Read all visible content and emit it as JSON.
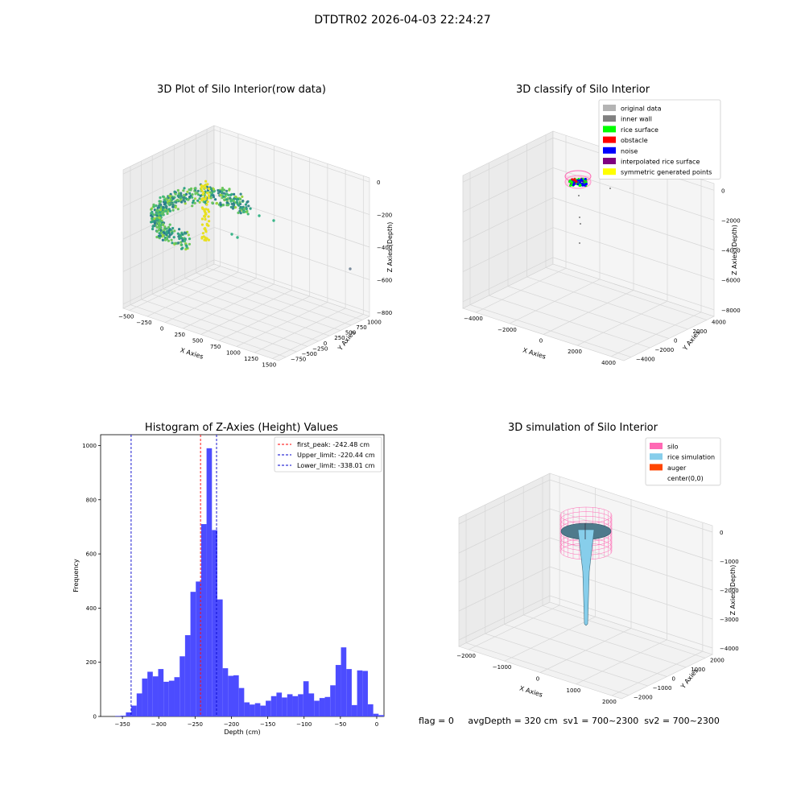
{
  "figure": {
    "suptitle": "DTDTR02 2026-04-03 22:24:27",
    "footer": "flag = 0     avgDepth = 320 cm  sv1 = 700~2300  sv2 = 700~2300"
  },
  "colors": {
    "hist_bar": "#4c4cff",
    "first_peak": "#ff0000",
    "limit": "#0000cc",
    "silo": "#ff69b4",
    "rice_sim": "#87ceeb",
    "auger": "#ff4500"
  },
  "chart_data": [
    {
      "type": "scatter",
      "subtype": "scatter3d",
      "title": "3D Plot of Silo Interior(row data)",
      "xlabel": "X Axies",
      "ylabel": "Y Axies",
      "zlabel": "Z Axies (Depth)",
      "x_ticks": [
        "−500",
        "−250",
        "0",
        "250",
        "500",
        "750",
        "1000",
        "1250",
        "1500"
      ],
      "y_ticks": [
        "−750",
        "−500",
        "−250",
        "0",
        "250",
        "500",
        "750",
        "1000"
      ],
      "z_ticks": [
        "−800",
        "−600",
        "−400",
        "−200",
        "0"
      ],
      "xlim": [
        -550,
        1550
      ],
      "ylim": [
        -800,
        1050
      ],
      "zlim": [
        -900,
        20
      ],
      "colormap": "viridis",
      "grid": true
    },
    {
      "type": "scatter",
      "subtype": "scatter3d",
      "title": "3D classify of Silo Interior",
      "xlabel": "X Axies",
      "ylabel": "Y Axies",
      "zlabel": "Z Axies (Depth)",
      "x_ticks": [
        "−4000",
        "−2000",
        "0",
        "2000",
        "4000"
      ],
      "y_ticks": [
        "−4000",
        "−2000",
        "0",
        "2000",
        "4000"
      ],
      "z_ticks": [
        "−8000",
        "−6000",
        "−4000",
        "−2000",
        "0"
      ],
      "legend_position": "top-right",
      "legend": [
        {
          "label": "original data",
          "color": "#b4b4b4"
        },
        {
          "label": "inner wall",
          "color": "#808080"
        },
        {
          "label": "rice surface",
          "color": "#00ff00"
        },
        {
          "label": "obstacle",
          "color": "#ff0000"
        },
        {
          "label": "noise",
          "color": "#0000ff"
        },
        {
          "label": "interpolated rice surface",
          "color": "#800080"
        },
        {
          "label": "symmetric generated points",
          "color": "#ffff00"
        }
      ],
      "grid": true
    },
    {
      "type": "bar",
      "subtype": "histogram",
      "title": "Histogram of Z-Axies (Height) Values",
      "xlabel": "Depth (cm)",
      "ylabel": "Frequency",
      "xlim": [
        -380,
        10
      ],
      "ylim": [
        0,
        1040
      ],
      "x_ticks": [
        -350,
        -300,
        -250,
        -200,
        -150,
        -100,
        -50,
        0
      ],
      "y_ticks": [
        0,
        200,
        400,
        600,
        800,
        1000
      ],
      "bin_width": 7.4,
      "bins_start": -360,
      "values": [
        2,
        3,
        15,
        40,
        85,
        140,
        165,
        148,
        175,
        128,
        132,
        145,
        222,
        300,
        460,
        498,
        710,
        990,
        688,
        432,
        178,
        150,
        152,
        105,
        52,
        44,
        49,
        40,
        58,
        75,
        88,
        70,
        82,
        75,
        82,
        130,
        85,
        58,
        68,
        72,
        115,
        190,
        255,
        175,
        42,
        170,
        168,
        45,
        10,
        5
      ],
      "lines": [
        {
          "name": "first_peak",
          "label": "first_peak: -242.48 cm",
          "x": -242.48,
          "color": "#ff0000"
        },
        {
          "name": "upper_limit",
          "label": "Upper_limit: -220.44 cm",
          "x": -220.44,
          "color": "#0000cc"
        },
        {
          "name": "lower_limit",
          "label": "Lower_limit: -338.01 cm",
          "x": -338.01,
          "color": "#0000cc"
        }
      ],
      "legend_position": "top-right",
      "grid": false
    },
    {
      "type": "area",
      "subtype": "surface3d",
      "title": "3D simulation of Silo Interior",
      "xlabel": "X Axies",
      "ylabel": "Y Axies",
      "zlabel": "Z Axies (Depth)",
      "x_ticks": [
        "−2000",
        "−1000",
        "0",
        "1000",
        "2000"
      ],
      "y_ticks": [
        "−2000",
        "−1000",
        "0",
        "1000",
        "2000"
      ],
      "z_ticks": [
        "−4000",
        "−3000",
        "−2000",
        "−1000",
        "0"
      ],
      "legend_position": "top-right",
      "legend": [
        {
          "label": "silo",
          "color": "#ff69b4"
        },
        {
          "label": "rice simulation",
          "color": "#87ceeb"
        },
        {
          "label": "auger",
          "color": "#ff4500"
        },
        {
          "label": "center(0,0)",
          "color": "#ffffff"
        }
      ],
      "grid": true
    }
  ]
}
